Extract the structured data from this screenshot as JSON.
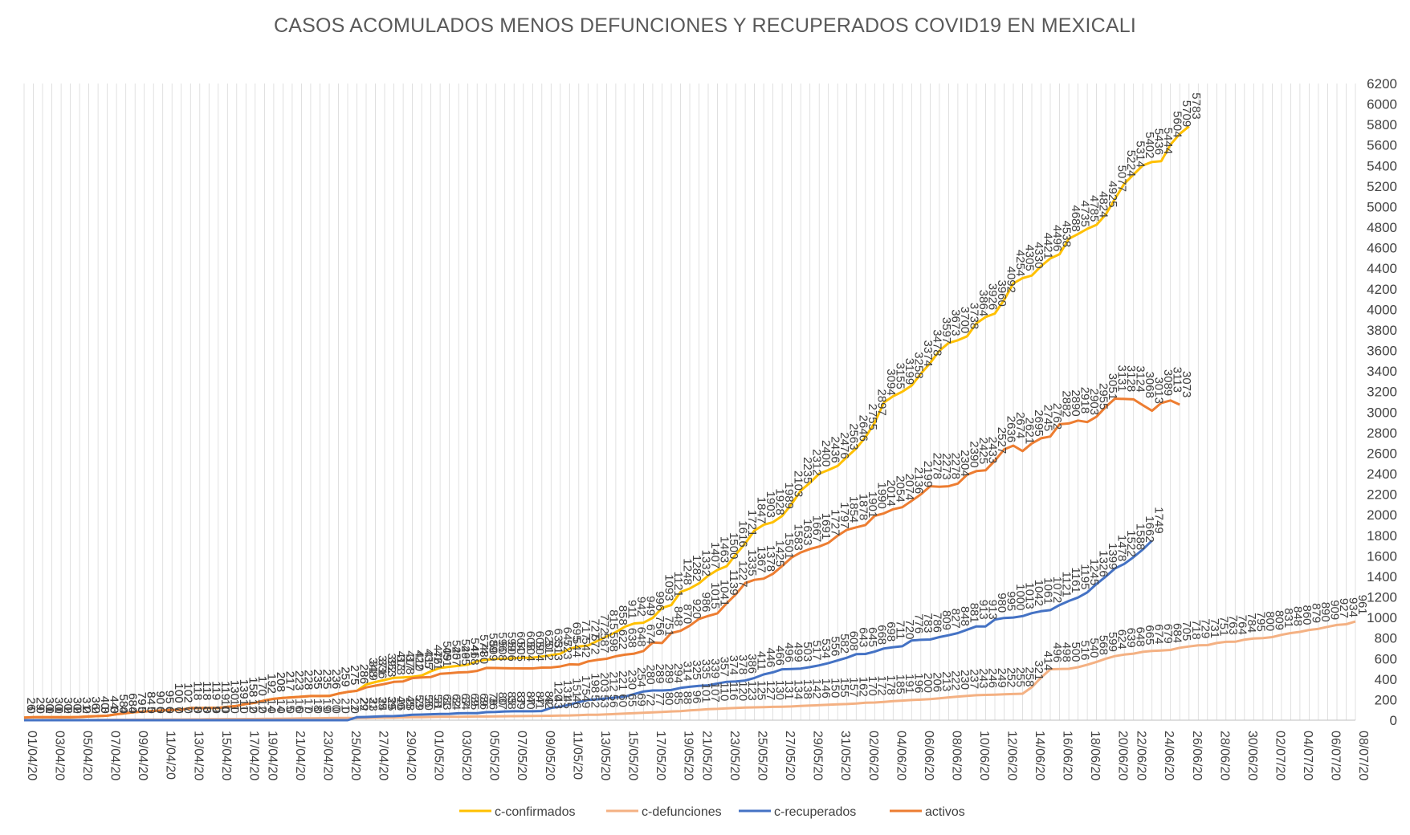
{
  "chart_data": {
    "type": "line",
    "title": "CASOS ACOMULADOS  MENOS DEFUNCIONES  Y RECUPERADOS  COVID19  EN MEXICALI",
    "xlabel": "",
    "ylabel": "",
    "ylim": [
      0,
      6200
    ],
    "y_ticks": [
      0,
      200,
      400,
      600,
      800,
      1000,
      1200,
      1400,
      1600,
      1800,
      2000,
      2200,
      2400,
      2600,
      2800,
      3000,
      3200,
      3400,
      3600,
      3800,
      4000,
      4200,
      4400,
      4600,
      4800,
      5000,
      5200,
      5400,
      5600,
      5800,
      6000,
      6200
    ],
    "y_axis_side": "right",
    "grid": "vertical",
    "legend_position": "bottom",
    "x_tick_labels": [
      "01/04/20",
      "03/04/20",
      "05/04/20",
      "07/04/20",
      "09/04/20",
      "11/04/20",
      "13/04/20",
      "15/04/20",
      "17/04/20",
      "19/04/20",
      "21/04/20",
      "23/04/20",
      "25/04/20",
      "27/04/20",
      "29/04/20",
      "01/05/20",
      "03/05/20",
      "05/05/20",
      "07/05/20",
      "09/05/20",
      "11/05/20",
      "13/05/20",
      "15/05/20",
      "17/05/20",
      "19/05/20",
      "21/05/20",
      "23/05/20",
      "25/05/20",
      "27/05/20",
      "29/05/20",
      "31/05/20",
      "02/06/20",
      "04/06/20",
      "06/06/20",
      "08/06/20",
      "10/06/20",
      "12/06/20",
      "14/06/20",
      "16/06/20",
      "18/06/20",
      "20/06/20",
      "22/06/20",
      "24/06/20",
      "26/06/20",
      "28/06/20",
      "30/06/20",
      "02/07/20",
      "04/07/20",
      "06/07/20",
      "08/07/20"
    ],
    "series": [
      {
        "name": "c-confirmados",
        "color": "#FFC000",
        "values": [
          26,
          29,
          30,
          30,
          30,
          30,
          31,
          36,
          40,
          44,
          58,
          68,
          79,
          84,
          90,
          95,
          100,
          102,
          118,
          118,
          119,
          119,
          130,
          139,
          158,
          170,
          192,
          208,
          217,
          223,
          228,
          235,
          235,
          236,
          259,
          275,
          286,
          348,
          371,
          392,
          413,
          417,
          422,
          435,
          476,
          509,
          520,
          529,
          541,
          574,
          589,
          596,
          599,
          604,
          608,
          609,
          620,
          633,
          647,
          695,
          717,
          727,
          772,
          815,
          858,
          911,
          942,
          949,
          996,
          1093,
          1121,
          1248,
          1282,
          1332,
          1407,
          1463,
          1500,
          1616,
          1721,
          1847,
          1903,
          1928,
          1989,
          2103,
          2235,
          2312,
          2400,
          2436,
          2476,
          2563,
          2646,
          2755,
          2897,
          3094,
          3155,
          3199,
          3258,
          3374,
          3478,
          3597,
          3673,
          3700,
          3738,
          3864,
          3926,
          3960,
          4092,
          4254,
          4305,
          4330,
          4421,
          4496,
          4538,
          4688,
          4735,
          4785,
          4824,
          4925,
          5077,
          5224,
          5314,
          5402,
          5436,
          5444,
          5604,
          5709,
          5783
        ]
      },
      {
        "name": "c-defunciones",
        "color": "#F4B183",
        "values": [
          0,
          0,
          1,
          1,
          2,
          2,
          2,
          2,
          3,
          3,
          4,
          4,
          5,
          5,
          6,
          6,
          7,
          7,
          8,
          8,
          9,
          10,
          11,
          11,
          12,
          12,
          14,
          14,
          15,
          16,
          17,
          18,
          19,
          20,
          21,
          22,
          22,
          23,
          24,
          25,
          26,
          28,
          29,
          30,
          31,
          33,
          34,
          34,
          35,
          36,
          36,
          37,
          38,
          39,
          40,
          41,
          42,
          43,
          45,
          46,
          49,
          52,
          53,
          56,
          60,
          65,
          69,
          72,
          77,
          80,
          85,
          88,
          96,
          101,
          107,
          110,
          116,
          120,
          123,
          125,
          127,
          130,
          131,
          134,
          138,
          142,
          146,
          150,
          155,
          157,
          162,
          170,
          172,
          178,
          185,
          191,
          196,
          200,
          206,
          213,
          222,
          230,
          237,
          243,
          246,
          249,
          252,
          255,
          258,
          321,
          414,
          496,
          498,
          500,
          516,
          540,
          568,
          599,
          624,
          639,
          648,
          665,
          674,
          679,
          684,
          705,
          718,
          729,
          731,
          751,
          763,
          764,
          784,
          795,
          800,
          809,
          831,
          848,
          860,
          879,
          890,
          909,
          927,
          934,
          961
        ]
      },
      {
        "name": "c-recuperados",
        "color": "#4472C4",
        "values": [
          0,
          0,
          0,
          0,
          0,
          0,
          0,
          0,
          0,
          0,
          0,
          0,
          0,
          0,
          0,
          0,
          0,
          0,
          0,
          0,
          0,
          0,
          0,
          0,
          0,
          0,
          0,
          0,
          0,
          0,
          0,
          0,
          0,
          0,
          0,
          0,
          29,
          31,
          35,
          39,
          40,
          45,
          53,
          55,
          58,
          61,
          62,
          67,
          69,
          69,
          78,
          80,
          85,
          87,
          87,
          87,
          89,
          120,
          131,
          151,
          175,
          198,
          203,
          212,
          221,
          230,
          254,
          280,
          289,
          289,
          294,
          314,
          325,
          335,
          339,
          357,
          374,
          378,
          386,
          411,
          446,
          466,
          496,
          499,
          503,
          517,
          534,
          556,
          582,
          608,
          643,
          645,
          668,
          698,
          711,
          720,
          776,
          783,
          786,
          809,
          827,
          848,
          881,
          913,
          913,
          980,
          995,
          1000,
          1013,
          1042,
          1061,
          1072,
          1121,
          1161,
          1195,
          1245,
          1326,
          1399,
          1478,
          1522,
          1588,
          1662,
          1749
        ]
      },
      {
        "name": "activos",
        "color": "#ED7D31",
        "values": [
          26,
          29,
          30,
          30,
          30,
          30,
          31,
          36,
          40,
          44,
          58,
          68,
          79,
          84,
          90,
          95,
          100,
          102,
          118,
          118,
          119,
          119,
          130,
          139,
          158,
          170,
          192,
          208,
          217,
          223,
          228,
          235,
          235,
          236,
          259,
          275,
          286,
          319,
          336,
          353,
          373,
          378,
          410,
          417,
          421,
          451,
          457,
          465,
          468,
          480,
          509,
          508,
          506,
          505,
          504,
          504,
          512,
          513,
          523,
          544,
          542,
          572,
          587,
          598,
          622,
          638,
          648,
          674,
          756,
          751,
          848,
          870,
          920,
          986,
          1015,
          1041,
          1139,
          1227,
          1335,
          1367,
          1378,
          1425,
          1501,
          1583,
          1633,
          1667,
          1691,
          1727,
          1797,
          1854,
          1878,
          1901,
          1990,
          2014,
          2054,
          2074,
          2136,
          2199,
          2278,
          2273,
          2278,
          2304,
          2390,
          2425,
          2433,
          2527,
          2636,
          2674,
          2621,
          2695,
          2745,
          2762,
          2882,
          2890,
          2918,
          2903,
          2955,
          3051,
          3131,
          3128,
          3124,
          3068,
          3013,
          3089,
          3113,
          3073
        ]
      }
    ]
  }
}
